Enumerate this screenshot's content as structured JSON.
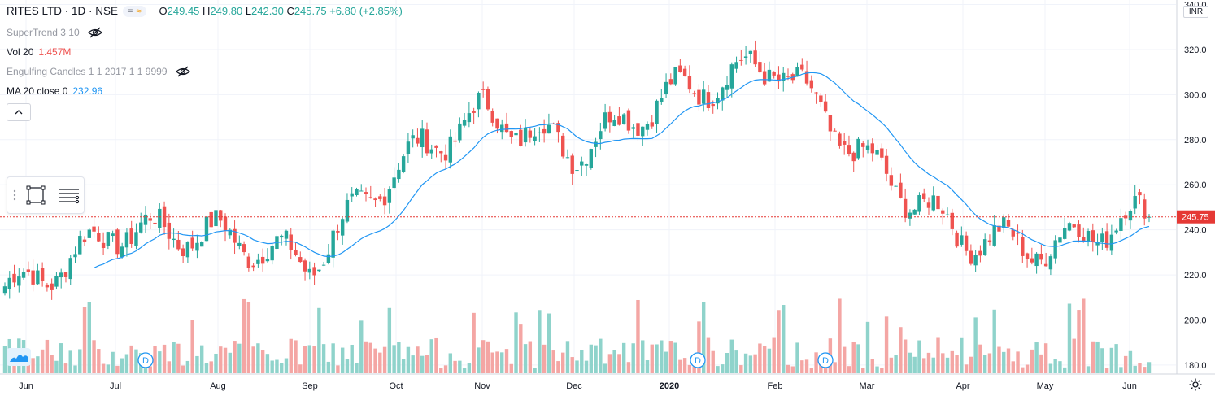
{
  "header": {
    "symbol": "RITES LTD · 1D · NSE",
    "open_label": "O",
    "open": "249.45",
    "high_label": "H",
    "high": "249.80",
    "low_label": "L",
    "low": "242.30",
    "close_label": "C",
    "close": "245.75",
    "change": "+6.80 (+2.85%)",
    "badge_minus": "=",
    "badge_wave": "≈"
  },
  "indicators": {
    "supertrend": "SuperTrend 3 10",
    "volume_label": "Vol 20",
    "volume_value": "1.457M",
    "engulfing": "Engulfing Candles 1 1 2017 1 1 9999",
    "ma_label": "MA 20 close 0",
    "ma_value": "232.96"
  },
  "currency": "INR",
  "colors": {
    "up": "#26a69a",
    "down": "#ef5350",
    "ma": "#2196f3",
    "price_line": "#e53935",
    "vol_up": "#8fd3cb",
    "vol_down": "#f4a6a4"
  },
  "chart_data": {
    "type": "candlestick",
    "price_axis": {
      "min": 176,
      "max": 342,
      "ticks": [
        180,
        200,
        220,
        240,
        260,
        280,
        300,
        320,
        340
      ]
    },
    "x_ticks": [
      "Jun",
      "Jul",
      "Aug",
      "Sep",
      "Oct",
      "Nov",
      "Dec",
      "2020",
      "Feb",
      "Mar",
      "Apr",
      "May",
      "Jun"
    ],
    "last_price": 245.75,
    "dividend_marker": "D",
    "series": [
      {
        "name": "monthly_path",
        "points": [
          [
            "Jun",
            215
          ],
          [
            "Jul",
            240
          ],
          [
            "Aug",
            238
          ],
          [
            "Sep",
            225
          ],
          [
            "Oct",
            268
          ],
          [
            "Nov",
            292
          ],
          [
            "Dec",
            275
          ],
          [
            "2020",
            300
          ],
          [
            "Feb",
            314
          ],
          [
            "Mar",
            270
          ],
          [
            "Apr",
            237
          ],
          [
            "May",
            232
          ],
          [
            "Jun",
            245.75
          ]
        ]
      }
    ]
  }
}
